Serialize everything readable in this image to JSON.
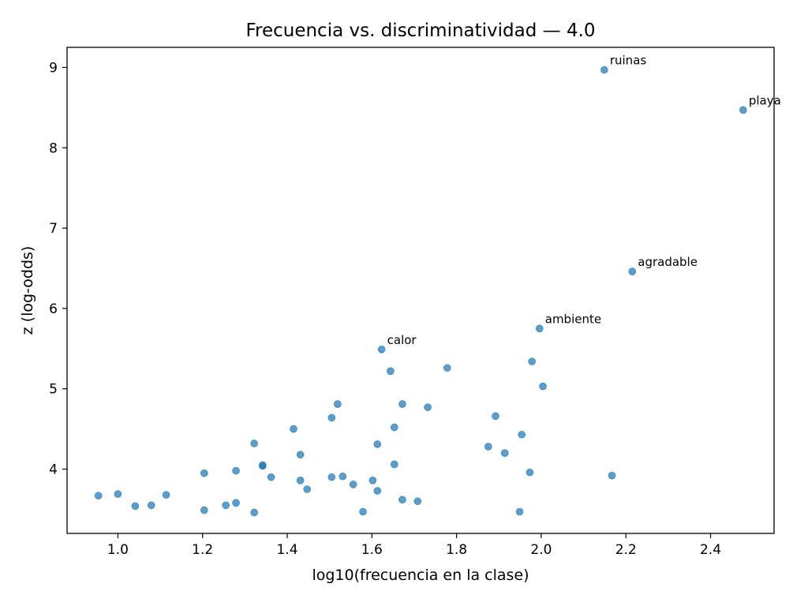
{
  "chart_data": {
    "type": "scatter",
    "title": "Frecuencia vs. discriminatividad — 4.0",
    "xlabel": "log10(frecuencia en la clase)",
    "ylabel": "z (log-odds)",
    "xlim": [
      0.88,
      2.55
    ],
    "ylim": [
      3.2,
      9.25
    ],
    "xticks": [
      {
        "value": 1.0,
        "label": "1.0"
      },
      {
        "value": 1.2,
        "label": "1.2"
      },
      {
        "value": 1.4,
        "label": "1.4"
      },
      {
        "value": 1.6,
        "label": "1.6"
      },
      {
        "value": 1.8,
        "label": "1.8"
      },
      {
        "value": 2.0,
        "label": "2.0"
      },
      {
        "value": 2.2,
        "label": "2.2"
      },
      {
        "value": 2.4,
        "label": "2.4"
      }
    ],
    "yticks": [
      {
        "value": 4,
        "label": "4"
      },
      {
        "value": 5,
        "label": "5"
      },
      {
        "value": 6,
        "label": "6"
      },
      {
        "value": 7,
        "label": "7"
      },
      {
        "value": 8,
        "label": "8"
      },
      {
        "value": 9,
        "label": "9"
      }
    ],
    "grid": false,
    "point_color": "#1f77b4",
    "points": [
      {
        "x": 0.954,
        "y": 3.67
      },
      {
        "x": 1.0,
        "y": 3.69
      },
      {
        "x": 1.041,
        "y": 3.54
      },
      {
        "x": 1.079,
        "y": 3.55
      },
      {
        "x": 1.114,
        "y": 3.68
      },
      {
        "x": 1.204,
        "y": 3.49
      },
      {
        "x": 1.204,
        "y": 3.95
      },
      {
        "x": 1.255,
        "y": 3.55
      },
      {
        "x": 1.279,
        "y": 3.58
      },
      {
        "x": 1.279,
        "y": 3.98
      },
      {
        "x": 1.322,
        "y": 3.46
      },
      {
        "x": 1.322,
        "y": 4.32
      },
      {
        "x": 1.342,
        "y": 4.04
      },
      {
        "x": 1.342,
        "y": 4.05
      },
      {
        "x": 1.362,
        "y": 3.9
      },
      {
        "x": 1.415,
        "y": 4.5
      },
      {
        "x": 1.431,
        "y": 3.86
      },
      {
        "x": 1.431,
        "y": 4.18
      },
      {
        "x": 1.447,
        "y": 3.75
      },
      {
        "x": 1.505,
        "y": 3.9
      },
      {
        "x": 1.505,
        "y": 4.64
      },
      {
        "x": 1.519,
        "y": 4.81
      },
      {
        "x": 1.531,
        "y": 3.91
      },
      {
        "x": 1.556,
        "y": 3.81
      },
      {
        "x": 1.579,
        "y": 3.47
      },
      {
        "x": 1.602,
        "y": 3.86
      },
      {
        "x": 1.613,
        "y": 3.73
      },
      {
        "x": 1.613,
        "y": 4.31
      },
      {
        "x": 1.623,
        "y": 5.49,
        "label": "calor"
      },
      {
        "x": 1.644,
        "y": 5.22
      },
      {
        "x": 1.653,
        "y": 4.06
      },
      {
        "x": 1.653,
        "y": 4.52
      },
      {
        "x": 1.672,
        "y": 3.62
      },
      {
        "x": 1.672,
        "y": 4.81
      },
      {
        "x": 1.708,
        "y": 3.6
      },
      {
        "x": 1.732,
        "y": 4.77
      },
      {
        "x": 1.778,
        "y": 5.26
      },
      {
        "x": 1.875,
        "y": 4.28
      },
      {
        "x": 1.892,
        "y": 4.66
      },
      {
        "x": 1.914,
        "y": 4.2
      },
      {
        "x": 1.949,
        "y": 3.47
      },
      {
        "x": 1.954,
        "y": 4.43
      },
      {
        "x": 1.973,
        "y": 3.96
      },
      {
        "x": 1.978,
        "y": 5.34
      },
      {
        "x": 1.996,
        "y": 5.75,
        "label": "ambiente"
      },
      {
        "x": 2.004,
        "y": 5.03
      },
      {
        "x": 2.149,
        "y": 8.97,
        "label": "ruinas"
      },
      {
        "x": 2.167,
        "y": 3.92
      },
      {
        "x": 2.215,
        "y": 6.46,
        "label": "agradable"
      },
      {
        "x": 2.477,
        "y": 8.47,
        "label": "playa"
      }
    ]
  }
}
